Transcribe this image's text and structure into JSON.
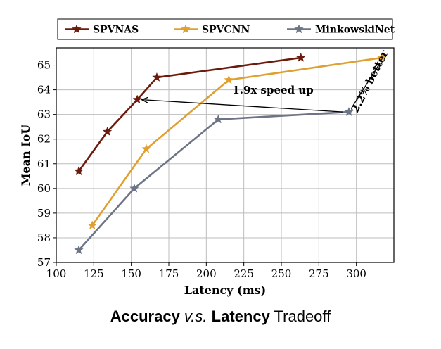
{
  "chart_data": {
    "type": "line",
    "xlabel": "Latency (ms)",
    "ylabel": "Mean IoU",
    "xlim": [
      100,
      325
    ],
    "ylim": [
      57,
      65.7
    ],
    "xticks": [
      100,
      125,
      150,
      175,
      200,
      225,
      250,
      275,
      300
    ],
    "yticks": [
      57,
      58,
      59,
      60,
      61,
      62,
      63,
      64,
      65
    ],
    "grid": true,
    "legend_position": "top",
    "series": [
      {
        "name": "SPVNAS",
        "color": "#6b1a0c",
        "marker": "star",
        "x": [
          115,
          134,
          154,
          167,
          263
        ],
        "y": [
          60.7,
          62.3,
          63.6,
          64.5,
          65.3
        ]
      },
      {
        "name": "SPVCNN",
        "color": "#e0a030",
        "marker": "star",
        "x": [
          124,
          160,
          215,
          317
        ],
        "y": [
          58.5,
          61.6,
          64.4,
          65.3
        ]
      },
      {
        "name": "MinkowskiNet",
        "color": "#6c7486",
        "marker": "star",
        "x": [
          115,
          152,
          208,
          295
        ],
        "y": [
          57.5,
          60.0,
          62.8,
          63.1
        ]
      }
    ],
    "annotations": [
      {
        "text": "1.9x speed up",
        "from": [
          295,
          63.1
        ],
        "to": [
          156,
          63.6
        ]
      },
      {
        "text": "2.2% better",
        "from": [
          295,
          63.1
        ],
        "to": [
          317,
          65.3
        ]
      }
    ]
  },
  "caption": {
    "part1": "Accuracy",
    "part2": "v.s.",
    "part3": "Latency",
    "part4": "Tradeoff"
  }
}
